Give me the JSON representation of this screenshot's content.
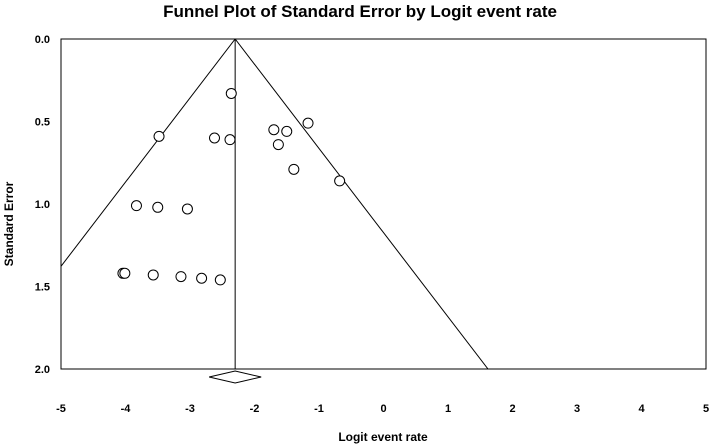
{
  "chart_data": {
    "type": "scatter",
    "title": "Funnel Plot of Standard Error by Logit event rate",
    "xlabel": "Logit event rate",
    "ylabel": "Standard Error",
    "xlim": [
      -5,
      5
    ],
    "ylim": [
      0.0,
      2.0
    ],
    "y_reversed": true,
    "x_ticks": [
      "-5",
      "-4",
      "-3",
      "-2",
      "-1",
      "0",
      "1",
      "2",
      "3",
      "4",
      "5"
    ],
    "y_ticks": [
      "0.0",
      "0.5",
      "1.0",
      "1.5",
      "2.0"
    ],
    "summary_effect": -2.3,
    "funnel_limits": "95% pseudo-confidence (±1.96 SE)",
    "points": [
      {
        "x": -2.36,
        "y": 0.33
      },
      {
        "x": -3.48,
        "y": 0.59
      },
      {
        "x": -2.62,
        "y": 0.6
      },
      {
        "x": -2.38,
        "y": 0.61
      },
      {
        "x": -1.7,
        "y": 0.55
      },
      {
        "x": -1.5,
        "y": 0.56
      },
      {
        "x": -1.63,
        "y": 0.64
      },
      {
        "x": -1.17,
        "y": 0.51
      },
      {
        "x": -1.39,
        "y": 0.79
      },
      {
        "x": -0.68,
        "y": 0.86
      },
      {
        "x": -3.83,
        "y": 1.01
      },
      {
        "x": -3.5,
        "y": 1.02
      },
      {
        "x": -3.04,
        "y": 1.03
      },
      {
        "x": -4.04,
        "y": 1.42
      },
      {
        "x": -4.01,
        "y": 1.42
      },
      {
        "x": -3.57,
        "y": 1.43
      },
      {
        "x": -3.14,
        "y": 1.44
      },
      {
        "x": -2.82,
        "y": 1.45
      },
      {
        "x": -2.53,
        "y": 1.46
      }
    ],
    "grid": false,
    "legend": "none"
  }
}
